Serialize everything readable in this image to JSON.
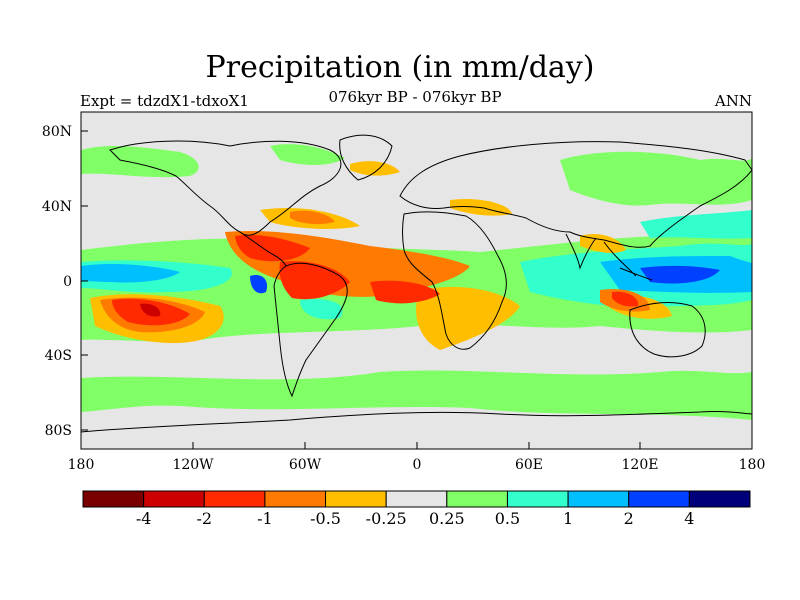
{
  "title": "Precipitation (in mm/day)",
  "experiment": "Expt = tdzdX1-tdxoX1",
  "period": "076kyr BP - 076kyr BP",
  "season": "ANN",
  "lat_ticks": [
    "80N",
    "40N",
    "0",
    "40S",
    "80S"
  ],
  "lon_ticks": [
    "180",
    "120W",
    "60W",
    "0",
    "60E",
    "120E",
    "180"
  ],
  "colorbar": {
    "labels": [
      "-4",
      "-2",
      "-1",
      "-0.5",
      "-0.25",
      "0.25",
      "0.5",
      "1",
      "2",
      "4"
    ],
    "colors": [
      "#7a0000",
      "#cc0000",
      "#ff2a00",
      "#ff7a00",
      "#ffbf00",
      "#e6e6e6",
      "#80ff66",
      "#33ffcc",
      "#00bfff",
      "#0040ff",
      "#00007a"
    ]
  },
  "chart_data": {
    "type": "heatmap",
    "title": "Precipitation (in mm/day)",
    "variable": "precipitation difference",
    "units": "mm/day",
    "x_range": [
      -180,
      180
    ],
    "y_range": [
      -90,
      90
    ],
    "levels": [
      -4,
      -2,
      -1,
      -0.5,
      -0.25,
      0.25,
      0.5,
      1,
      2,
      4
    ]
  }
}
